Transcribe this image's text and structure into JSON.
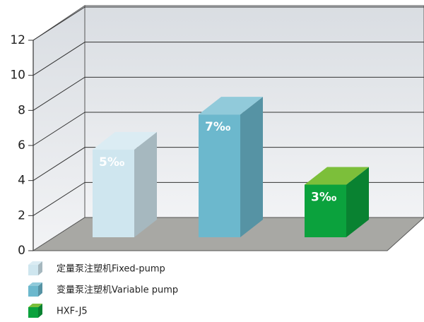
{
  "chart_data": {
    "type": "bar3d",
    "series": [
      {
        "name": "定量泵注塑机Fixed-pump",
        "color": "#cfe6ef",
        "values": [
          5
        ],
        "value_labels": [
          "5‰"
        ]
      },
      {
        "name": "变量泵注塑机Variable pump",
        "color": "#6cb8cd",
        "values": [
          7
        ],
        "value_labels": [
          "7‰"
        ]
      },
      {
        "name": "HXF-J5",
        "color": "#0ba23d",
        "values": [
          3
        ],
        "value_labels": [
          "3‰"
        ]
      }
    ],
    "ylim": [
      0,
      12
    ],
    "yticks": [
      0,
      2,
      4,
      6,
      8,
      10,
      12
    ],
    "grid": true
  }
}
